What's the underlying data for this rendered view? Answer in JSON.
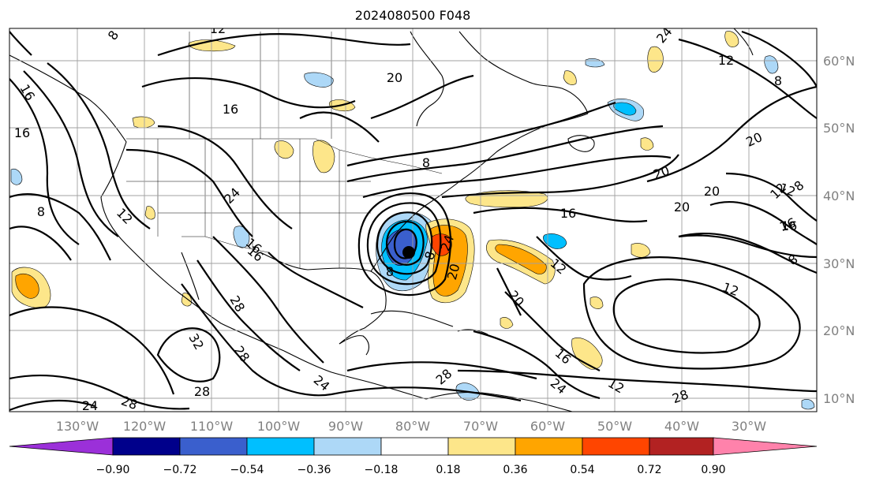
{
  "title": "2024080500 F048",
  "map": {
    "lon_labels": [
      "130°W",
      "120°W",
      "110°W",
      "100°W",
      "90°W",
      "80°W",
      "70°W",
      "60°W",
      "50°W",
      "40°W",
      "30°W"
    ],
    "lat_labels": [
      "60°N",
      "50°N",
      "40°N",
      "30°N",
      "20°N",
      "10°N"
    ],
    "contour_labels": [
      {
        "text": "12",
        "rot": 0
      },
      {
        "text": "8",
        "rot": -55
      },
      {
        "text": "16",
        "rot": 0
      },
      {
        "text": "16",
        "rot": 0
      },
      {
        "text": "16",
        "rot": 60
      },
      {
        "text": "8",
        "rot": 0
      },
      {
        "text": "12",
        "rot": 45
      },
      {
        "text": "24",
        "rot": -45
      },
      {
        "text": "16",
        "rot": 40
      },
      {
        "text": "8",
        "rot": 0
      },
      {
        "text": "12",
        "rot": 20
      },
      {
        "text": "20",
        "rot": -20
      },
      {
        "text": "20",
        "rot": 0
      },
      {
        "text": "16",
        "rot": 0
      },
      {
        "text": "20",
        "rot": -25
      },
      {
        "text": "24",
        "rot": -70
      },
      {
        "text": "20",
        "rot": -75
      },
      {
        "text": "8",
        "rot": -70
      },
      {
        "text": "12",
        "rot": 40
      },
      {
        "text": "12",
        "rot": 20
      },
      {
        "text": "20",
        "rot": 50
      },
      {
        "text": "16",
        "rot": 40
      },
      {
        "text": "24",
        "rot": 40
      },
      {
        "text": "12",
        "rot": 30
      },
      {
        "text": "28",
        "rot": 60
      },
      {
        "text": "28",
        "rot": 55
      },
      {
        "text": "32",
        "rot": 60
      },
      {
        "text": "28",
        "rot": 0
      },
      {
        "text": "24",
        "rot": 0
      },
      {
        "text": "28",
        "rot": 20
      },
      {
        "text": "24",
        "rot": 40
      },
      {
        "text": "28",
        "rot": -40
      },
      {
        "text": "28",
        "rot": -20
      },
      {
        "text": "16",
        "rot": 0
      },
      {
        "text": "20",
        "rot": 0
      },
      {
        "text": "12",
        "rot": -45
      },
      {
        "text": "8",
        "rot": -35
      },
      {
        "text": "8",
        "rot": 0
      },
      {
        "text": "16",
        "rot": -20
      },
      {
        "text": "8",
        "rot": -40
      },
      {
        "text": "24",
        "rot": -50
      },
      {
        "text": "20",
        "rot": 0
      },
      {
        "text": "16",
        "rot": 40
      },
      {
        "text": "8",
        "rot": 0
      },
      {
        "text": "12",
        "rot": 0
      }
    ]
  },
  "colorbar": {
    "tick_labels": [
      "−0.90",
      "−0.72",
      "−0.54",
      "−0.36",
      "−0.18",
      "0.18",
      "0.36",
      "0.54",
      "0.72",
      "0.90"
    ],
    "colors": [
      "#9b30d9",
      "#00008b",
      "#3a5fcd",
      "#00bfff",
      "#add8f7",
      "#ffffff",
      "#fde68a",
      "#ffa500",
      "#ff4500",
      "#b22222",
      "#ff82ab"
    ]
  },
  "shading_colors": {
    "light_blue": "#add8f7",
    "sky_blue": "#00bfff",
    "royal_blue": "#3a5fcd",
    "light_yellow": "#fde68a",
    "orange": "#ffa500",
    "red_orange": "#ff4500"
  }
}
